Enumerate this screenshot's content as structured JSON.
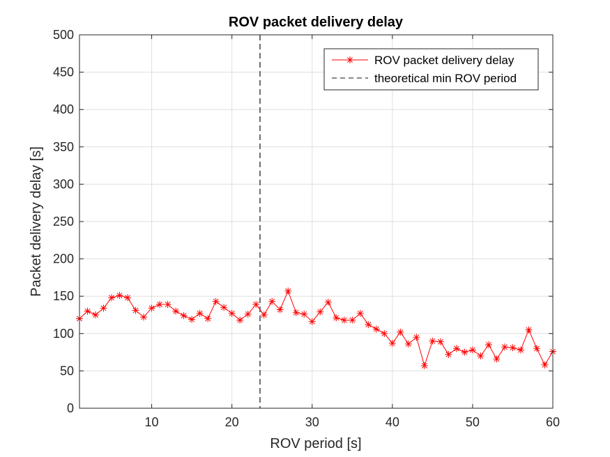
{
  "chart_data": {
    "type": "line",
    "title": "ROV packet delivery delay",
    "xlabel": "ROV period [s]",
    "ylabel": "Packet delivery delay [s]",
    "xlim": [
      1,
      60
    ],
    "ylim": [
      0,
      500
    ],
    "xticks": [
      10,
      20,
      30,
      40,
      50,
      60
    ],
    "yticks": [
      0,
      50,
      100,
      150,
      200,
      250,
      300,
      350,
      400,
      450,
      500
    ],
    "grid": true,
    "legend_position": "top-right",
    "series": [
      {
        "name": "ROV packet delivery delay",
        "color": "#ff0000",
        "marker": "asterisk",
        "x": [
          1,
          2,
          3,
          4,
          5,
          6,
          7,
          8,
          9,
          10,
          11,
          12,
          13,
          14,
          15,
          16,
          17,
          18,
          19,
          20,
          21,
          22,
          23,
          24,
          25,
          26,
          27,
          28,
          29,
          30,
          31,
          32,
          33,
          34,
          35,
          36,
          37,
          38,
          39,
          40,
          41,
          42,
          43,
          44,
          45,
          46,
          47,
          48,
          49,
          50,
          51,
          52,
          53,
          54,
          55,
          56,
          57,
          58,
          59,
          60
        ],
        "y": [
          120,
          130,
          125,
          134,
          148,
          151,
          148,
          131,
          122,
          134,
          139,
          139,
          130,
          124,
          119,
          127,
          120,
          143,
          135,
          127,
          118,
          126,
          139,
          125,
          143,
          132,
          157,
          128,
          126,
          116,
          129,
          142,
          121,
          118,
          118,
          127,
          112,
          106,
          100,
          87,
          102,
          86,
          95,
          57,
          90,
          89,
          72,
          80,
          75,
          78,
          70,
          85,
          66,
          82,
          81,
          78,
          105,
          80,
          58,
          76
        ]
      },
      {
        "name": "theoretical min ROV period",
        "color": "#404040",
        "style": "dashed",
        "x_value": 23.5
      }
    ]
  }
}
